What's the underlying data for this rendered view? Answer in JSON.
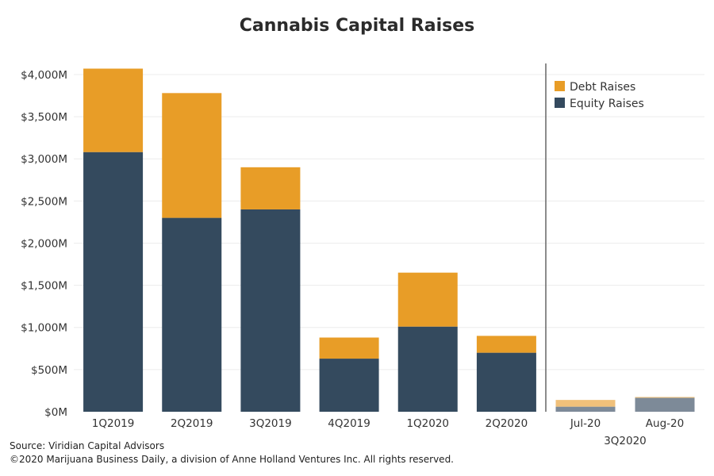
{
  "colors": {
    "debt": "#E89D27",
    "equity": "#344A5E",
    "debt_faded": "#F0C07A",
    "equity_faded": "#7D8A98",
    "grid": "#ececec",
    "divider": "#666666"
  },
  "chart_data": {
    "type": "bar",
    "stacked": true,
    "title": "Cannabis Capital Raises",
    "xlabel": "",
    "ylabel": "",
    "ylim": [
      0,
      4150
    ],
    "y_ticks": [
      0,
      500,
      1000,
      1500,
      2000,
      2500,
      3000,
      3500,
      4000
    ],
    "y_tick_labels": [
      "$0M",
      "$500M",
      "$1,000M",
      "$1,500M",
      "$2,000M",
      "$2,500M",
      "$3,000M",
      "$3,500M",
      "$4,000M"
    ],
    "grid": true,
    "legend_position": "top-right",
    "categories": [
      "1Q2019",
      "2Q2019",
      "3Q2019",
      "4Q2019",
      "1Q2020",
      "2Q2020",
      "Jul-20",
      "Aug-20"
    ],
    "highlighted_group_label": "3Q2020",
    "highlighted_group_categories": [
      "Jul-20",
      "Aug-20"
    ],
    "series": [
      {
        "name": "Equity Raises",
        "values": [
          3080,
          2300,
          2400,
          630,
          1010,
          700,
          60,
          165
        ]
      },
      {
        "name": "Debt Raises",
        "values": [
          990,
          1480,
          500,
          250,
          640,
          200,
          80,
          10
        ]
      }
    ]
  },
  "footer": {
    "source": "Source: Viridian Capital Advisors",
    "copyright": "©2020 Marijuana Business Daily, a division of Anne Holland Ventures Inc. All rights reserved."
  }
}
